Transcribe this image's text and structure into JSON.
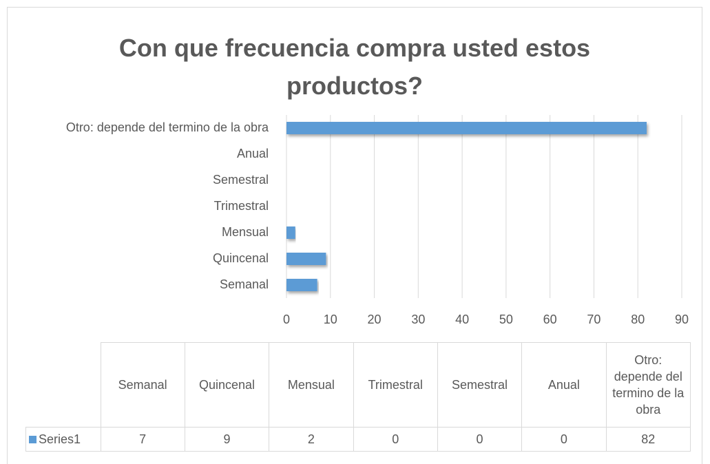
{
  "chart_data": {
    "type": "bar",
    "orientation": "horizontal",
    "title": "Con que frecuencia compra usted estos productos?",
    "categories": [
      "Semanal",
      "Quincenal",
      "Mensual",
      "Trimestral",
      "Semestral",
      "Anual",
      "Otro: depende del termino de la obra"
    ],
    "series": [
      {
        "name": "Series1",
        "color": "#5b9bd5",
        "values": [
          7,
          9,
          2,
          0,
          0,
          0,
          82
        ]
      }
    ],
    "xlim": [
      0,
      90
    ],
    "xticks": [
      0,
      10,
      20,
      30,
      40,
      50,
      60,
      70,
      80,
      90
    ],
    "grid": true,
    "data_table": true
  }
}
